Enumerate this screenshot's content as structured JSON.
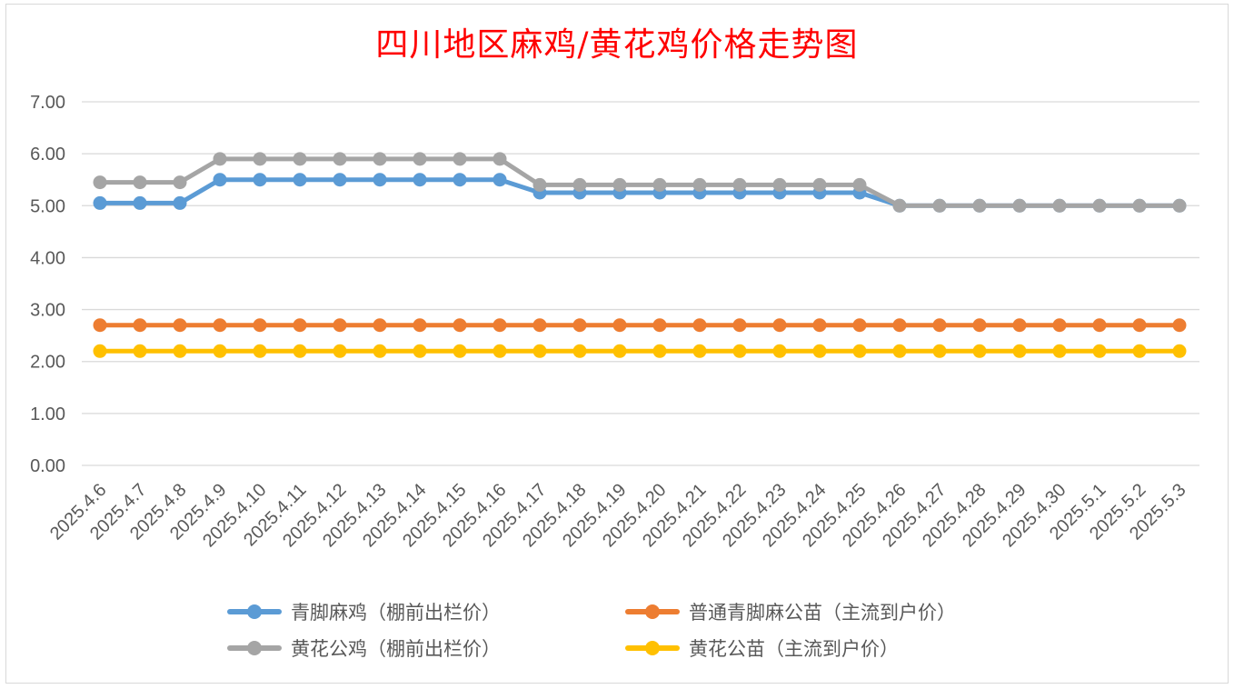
{
  "chart_data": {
    "type": "line",
    "title": "四川地区麻鸡/黄花鸡价格走势图",
    "xlabel": "",
    "ylabel": "",
    "ylim": [
      0,
      7
    ],
    "yticks": [
      "0.00",
      "1.00",
      "2.00",
      "3.00",
      "4.00",
      "5.00",
      "6.00",
      "7.00"
    ],
    "grid": true,
    "legend_position": "bottom",
    "categories": [
      "2025.4.6",
      "2025.4.7",
      "2025.4.8",
      "2025.4.9",
      "2025.4.10",
      "2025.4.11",
      "2025.4.12",
      "2025.4.13",
      "2025.4.14",
      "2025.4.15",
      "2025.4.16",
      "2025.4.17",
      "2025.4.18",
      "2025.4.19",
      "2025.4.20",
      "2025.4.21",
      "2025.4.22",
      "2025.4.23",
      "2025.4.24",
      "2025.4.25",
      "2025.4.26",
      "2025.4.27",
      "2025.4.28",
      "2025.4.29",
      "2025.4.30",
      "2025.5.1",
      "2025.5.2",
      "2025.5.3"
    ],
    "series": [
      {
        "name": "青脚麻鸡（棚前出栏价）",
        "color": "#5b9bd5",
        "values": [
          5.05,
          5.05,
          5.05,
          5.5,
          5.5,
          5.5,
          5.5,
          5.5,
          5.5,
          5.5,
          5.5,
          5.25,
          5.25,
          5.25,
          5.25,
          5.25,
          5.25,
          5.25,
          5.25,
          5.25,
          5.0,
          5.0,
          5.0,
          5.0,
          5.0,
          5.0,
          5.0,
          5.0
        ]
      },
      {
        "name": "普通青脚麻公苗（主流到户价）",
        "color": "#ed7d31",
        "values": [
          2.7,
          2.7,
          2.7,
          2.7,
          2.7,
          2.7,
          2.7,
          2.7,
          2.7,
          2.7,
          2.7,
          2.7,
          2.7,
          2.7,
          2.7,
          2.7,
          2.7,
          2.7,
          2.7,
          2.7,
          2.7,
          2.7,
          2.7,
          2.7,
          2.7,
          2.7,
          2.7,
          2.7
        ]
      },
      {
        "name": "黄花公鸡（棚前出栏价）",
        "color": "#a5a5a5",
        "values": [
          5.45,
          5.45,
          5.45,
          5.9,
          5.9,
          5.9,
          5.9,
          5.9,
          5.9,
          5.9,
          5.9,
          5.4,
          5.4,
          5.4,
          5.4,
          5.4,
          5.4,
          5.4,
          5.4,
          5.4,
          5.0,
          5.0,
          5.0,
          5.0,
          5.0,
          5.0,
          5.0,
          5.0
        ]
      },
      {
        "name": "黄花公苗（主流到户价）",
        "color": "#ffc000",
        "values": [
          2.2,
          2.2,
          2.2,
          2.2,
          2.2,
          2.2,
          2.2,
          2.2,
          2.2,
          2.2,
          2.2,
          2.2,
          2.2,
          2.2,
          2.2,
          2.2,
          2.2,
          2.2,
          2.2,
          2.2,
          2.2,
          2.2,
          2.2,
          2.2,
          2.2,
          2.2,
          2.2,
          2.2
        ]
      }
    ]
  }
}
